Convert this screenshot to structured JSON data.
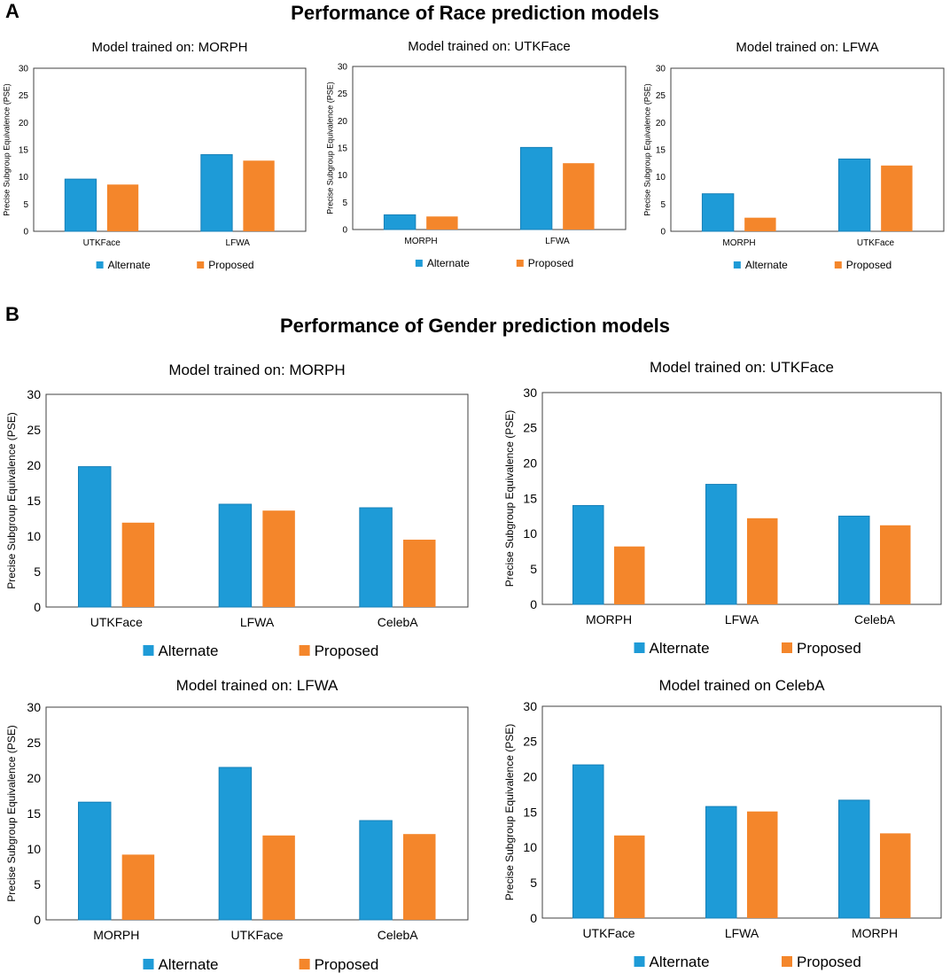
{
  "figure": {
    "panel_a_letter": "A",
    "panel_a_title": "Performance of Race prediction models",
    "panel_b_letter": "B",
    "panel_b_title": "Performance of Gender prediction models"
  },
  "colors": {
    "alternate": "#1e9bd7",
    "proposed": "#f4862b",
    "axis": "#404040"
  },
  "chart_data": [
    {
      "type": "bar",
      "title": "Model trained on: MORPH",
      "ylabel": "Precise Subgroup Equivalence (PSE)",
      "ylim": [
        0,
        30
      ],
      "yticks": [
        "0",
        "5",
        "10",
        "15",
        "20",
        "25",
        "30"
      ],
      "categories": [
        "UTKFace",
        "LFWA"
      ],
      "series": [
        {
          "name": "Alternate",
          "values": [
            9.6,
            14.1
          ]
        },
        {
          "name": "Proposed",
          "values": [
            8.6,
            13.0
          ]
        }
      ]
    },
    {
      "type": "bar",
      "title": "Model trained on: UTKFace",
      "ylabel": "Precise Subgroup Equivalence (PSE)",
      "ylim": [
        0,
        30
      ],
      "yticks": [
        "0",
        "5",
        "10",
        "15",
        "20",
        "25",
        "30"
      ],
      "categories": [
        "MORPH",
        "LFWA"
      ],
      "series": [
        {
          "name": "Alternate",
          "values": [
            2.7,
            15.1
          ]
        },
        {
          "name": "Proposed",
          "values": [
            2.4,
            12.2
          ]
        }
      ]
    },
    {
      "type": "bar",
      "title": "Model trained on: LFWA",
      "ylabel": "Precise Subgroup Equivalence (PSE)",
      "ylim": [
        0,
        30
      ],
      "yticks": [
        "0",
        "5",
        "10",
        "15",
        "20",
        "25",
        "30"
      ],
      "categories": [
        "MORPH",
        "UTKFace"
      ],
      "series": [
        {
          "name": "Alternate",
          "values": [
            6.9,
            13.3
          ]
        },
        {
          "name": "Proposed",
          "values": [
            2.5,
            12.1
          ]
        }
      ]
    },
    {
      "type": "bar",
      "title": "Model trained on: MORPH",
      "ylabel": "Precise Subgroup Equivalence (PSE)",
      "ylim": [
        0,
        30
      ],
      "yticks": [
        "0",
        "5",
        "10",
        "15",
        "20",
        "25",
        "30"
      ],
      "categories": [
        "UTKFace",
        "LFWA",
        "CelebA"
      ],
      "series": [
        {
          "name": "Alternate",
          "values": [
            19.8,
            14.5,
            14.0
          ]
        },
        {
          "name": "Proposed",
          "values": [
            11.9,
            13.6,
            9.5
          ]
        }
      ]
    },
    {
      "type": "bar",
      "title": "Model trained on: UTKFace",
      "ylabel": "Precise Subgroup Equivalence (PSE)",
      "ylim": [
        0,
        30
      ],
      "yticks": [
        "0",
        "5",
        "10",
        "15",
        "20",
        "25",
        "30"
      ],
      "categories": [
        "MORPH",
        "LFWA",
        "CelebA"
      ],
      "series": [
        {
          "name": "Alternate",
          "values": [
            14.0,
            17.0,
            12.5
          ]
        },
        {
          "name": "Proposed",
          "values": [
            8.2,
            12.2,
            11.2
          ]
        }
      ]
    },
    {
      "type": "bar",
      "title": "Model trained on: LFWA",
      "ylabel": "Precise Subgroup Equivalence (PSE)",
      "ylim": [
        0,
        30
      ],
      "yticks": [
        "0",
        "5",
        "10",
        "15",
        "20",
        "25",
        "30"
      ],
      "categories": [
        "MORPH",
        "UTKFace",
        "CelebA"
      ],
      "series": [
        {
          "name": "Alternate",
          "values": [
            16.6,
            21.5,
            14.0
          ]
        },
        {
          "name": "Proposed",
          "values": [
            9.2,
            11.9,
            12.1
          ]
        }
      ]
    },
    {
      "type": "bar",
      "title": "Model trained on CelebA",
      "ylabel": "Precise Subgroup Equivalence (PSE)",
      "ylim": [
        0,
        30
      ],
      "yticks": [
        "0",
        "5",
        "10",
        "15",
        "20",
        "25",
        "30"
      ],
      "categories": [
        "UTKFace",
        "LFWA",
        "MORPH"
      ],
      "series": [
        {
          "name": "Alternate",
          "values": [
            21.7,
            15.8,
            16.7
          ]
        },
        {
          "name": "Proposed",
          "values": [
            11.7,
            15.1,
            12.0
          ]
        }
      ]
    }
  ]
}
